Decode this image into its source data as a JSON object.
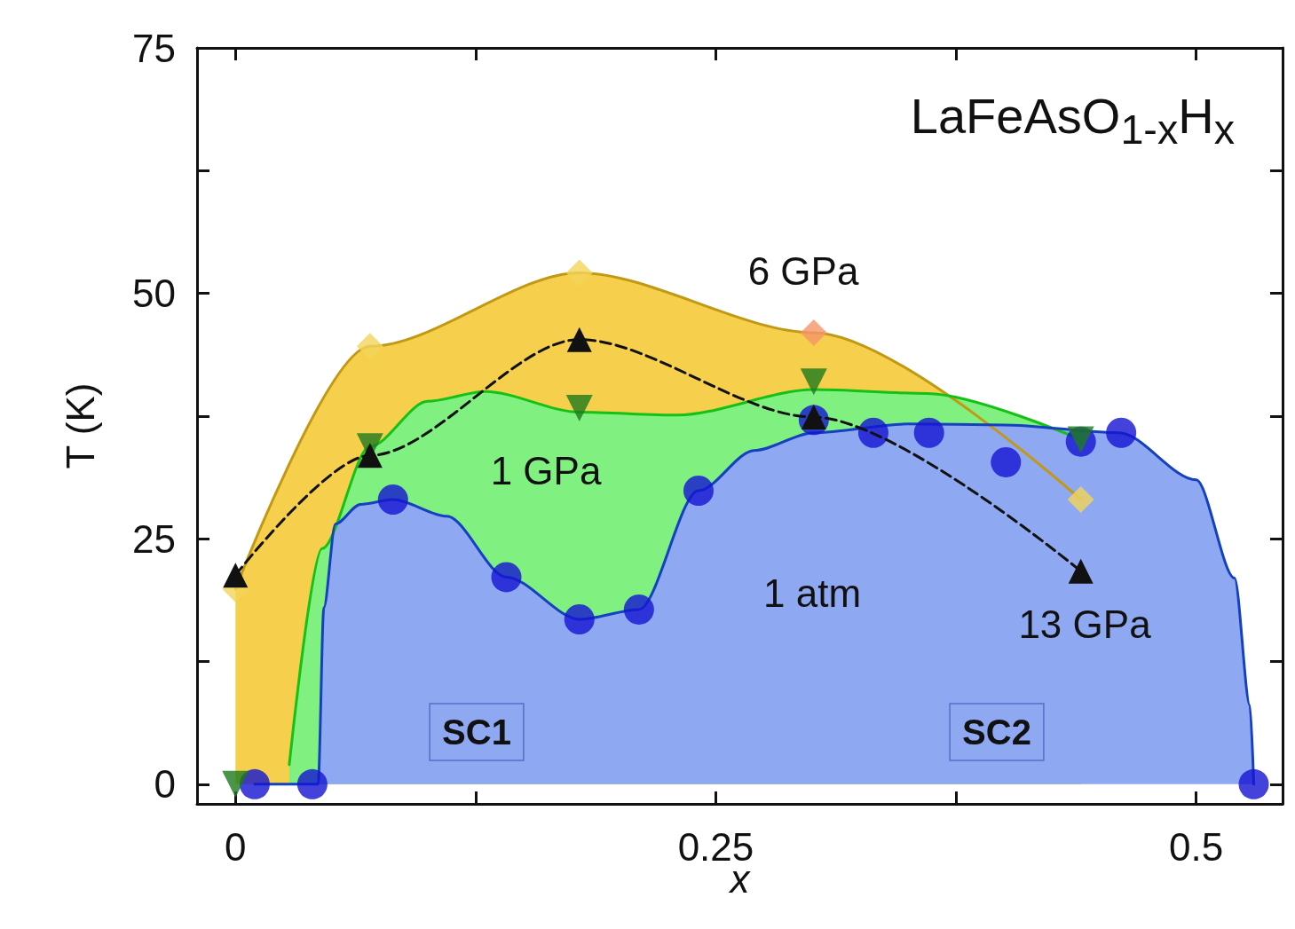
{
  "chart_data": {
    "type": "scatter",
    "title": "LaFeAsO$_{1-x}$H$_{x}$",
    "xlabel": "x",
    "ylabel": "T (K)",
    "xlim": [
      -0.02,
      0.545
    ],
    "ylim": [
      -2,
      75
    ],
    "xticks": [
      0,
      {
        "value": 0.125,
        "label": null
      },
      0.25,
      {
        "value": 0.375,
        "label": null
      },
      0.5
    ],
    "yticks": [
      0,
      {
        "value": 12.5,
        "label": null
      },
      25,
      {
        "value": 37.5,
        "label": null
      },
      50,
      {
        "value": 62.5,
        "label": null
      },
      75
    ],
    "grid": false,
    "series": [
      {
        "type": "area",
        "color": "#f6cf4c",
        "marker": "none",
        "x": [
          0,
          0.07,
          0.179,
          0.301,
          0.44
        ],
        "values": [
          19.9,
          44.6,
          52.1,
          46.0,
          29.0
        ]
      },
      {
        "type": "area",
        "color": "#80f080",
        "marker": "none",
        "x": [
          0.028,
          0.045,
          0.07,
          0.1,
          0.13,
          0.179,
          0.23,
          0.301,
          0.36,
          0.44
        ],
        "values": [
          2,
          24,
          34.4,
          39,
          40,
          37.9,
          37.6,
          40.2,
          39.8,
          35.1
        ]
      },
      {
        "type": "area",
        "color": "#8fa8f2",
        "marker": "none",
        "x": [
          0.01,
          0.043,
          0.046,
          0.052,
          0.065,
          0.082,
          0.11,
          0.141,
          0.179,
          0.21,
          0.241,
          0.27,
          0.301,
          0.35,
          0.4,
          0.46,
          0.5,
          0.52,
          0.528,
          0.53
        ],
        "values": [
          0,
          0,
          18,
          26.5,
          28.5,
          29,
          27.3,
          21.1,
          16.8,
          17.8,
          29.9,
          34,
          35.8,
          36.7,
          36.6,
          35.8,
          31,
          21,
          8,
          0
        ]
      },
      {
        "color": "#f3d45a",
        "marker": "diamond",
        "colors": [
          "#f3d45a",
          "#f3d45a",
          "#f3d45a",
          "#f5956a",
          "#f3d45a"
        ],
        "x": [
          0,
          0.07,
          0.179,
          0.301,
          0.44
        ],
        "values": [
          19.9,
          44.6,
          52.1,
          46.0,
          29.0
        ]
      },
      {
        "type": "line",
        "color": "#111111",
        "marker": "triangle",
        "line_style": "dashed",
        "x": [
          0,
          0.07,
          0.179,
          0.301,
          0.44
        ],
        "values": [
          21.3,
          33.5,
          45.3,
          37.4,
          21.7
        ]
      },
      {
        "color": "#1414d2",
        "marker": "circle",
        "x": [
          0.01,
          0.04,
          0.082,
          0.141,
          0.179,
          0.21,
          0.241,
          0.301,
          0.332,
          0.361,
          0.401,
          0.44,
          0.461,
          0.53
        ],
        "values": [
          0,
          0,
          29,
          21.1,
          16.8,
          17.8,
          29.9,
          37.1,
          35.8,
          35.8,
          32.8,
          34.9,
          35.8,
          0
        ]
      },
      {
        "color": "#1e7a1e",
        "marker": "triangle-down",
        "x": [
          0,
          0.07,
          0.179,
          0.301,
          0.44
        ],
        "values": [
          0,
          34.4,
          38.3,
          41.0,
          35.1
        ]
      }
    ],
    "annotations": [
      "6 GPa",
      "1 GPa",
      "1 atm",
      "13 GPa",
      "SC1",
      "SC2"
    ]
  }
}
